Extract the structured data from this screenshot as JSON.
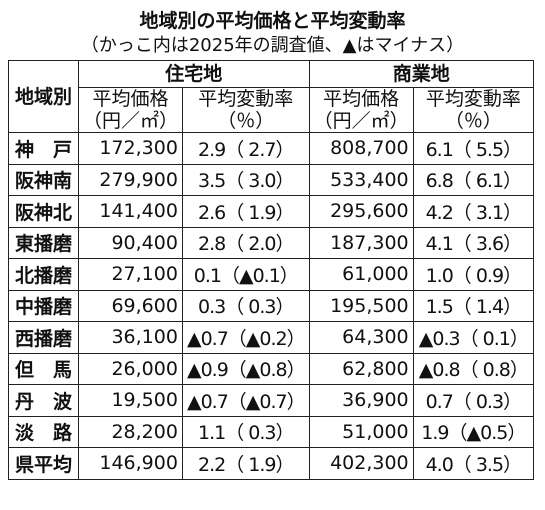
{
  "header": {
    "title": "地域別の平均価格と平均変動率",
    "subtitle": "（かっこ内は2025年の調査値、▲はマイナス）"
  },
  "table": {
    "region_header": "地域別",
    "groups": [
      "住宅地",
      "商業地"
    ],
    "columns": [
      [
        "平均価格",
        "（円／㎡）"
      ],
      [
        "平均変動率",
        "（％）"
      ],
      [
        "平均価格",
        "（円／㎡）"
      ],
      [
        "平均変動率",
        "（％）"
      ]
    ],
    "rows": [
      [
        "神　戸",
        "172,300",
        "2.9（ 2.7）",
        "808,700",
        "6.1（ 5.5）"
      ],
      [
        "阪神南",
        "279,900",
        "3.5（ 3.0）",
        "533,400",
        "6.8（ 6.1）"
      ],
      [
        "阪神北",
        "141,400",
        "2.6（ 1.9）",
        "295,600",
        "4.2（ 3.1）"
      ],
      [
        "東播磨",
        "90,400",
        "2.8（ 2.0）",
        "187,300",
        "4.1（ 3.6）"
      ],
      [
        "北播磨",
        "27,100",
        "0.1（▲0.1）",
        "61,000",
        "1.0（ 0.9）"
      ],
      [
        "中播磨",
        "69,600",
        "0.3（ 0.3）",
        "195,500",
        "1.5（ 1.4）"
      ],
      [
        "西播磨",
        "36,100",
        "▲0.7（▲0.2）",
        "64,300",
        "▲0.3（ 0.1）"
      ],
      [
        "但　馬",
        "26,000",
        "▲0.9（▲0.8）",
        "62,800",
        "▲0.8（ 0.8）"
      ],
      [
        "丹　波",
        "19,500",
        "▲0.7（▲0.7）",
        "36,900",
        "0.7（ 0.3）"
      ],
      [
        "淡　路",
        "28,200",
        "1.1（ 0.3）",
        "51,000",
        "1.9（▲0.5）"
      ],
      [
        "県平均",
        "146,900",
        "2.2（ 1.9）",
        "402,300",
        "4.0（ 3.5）"
      ]
    ]
  }
}
